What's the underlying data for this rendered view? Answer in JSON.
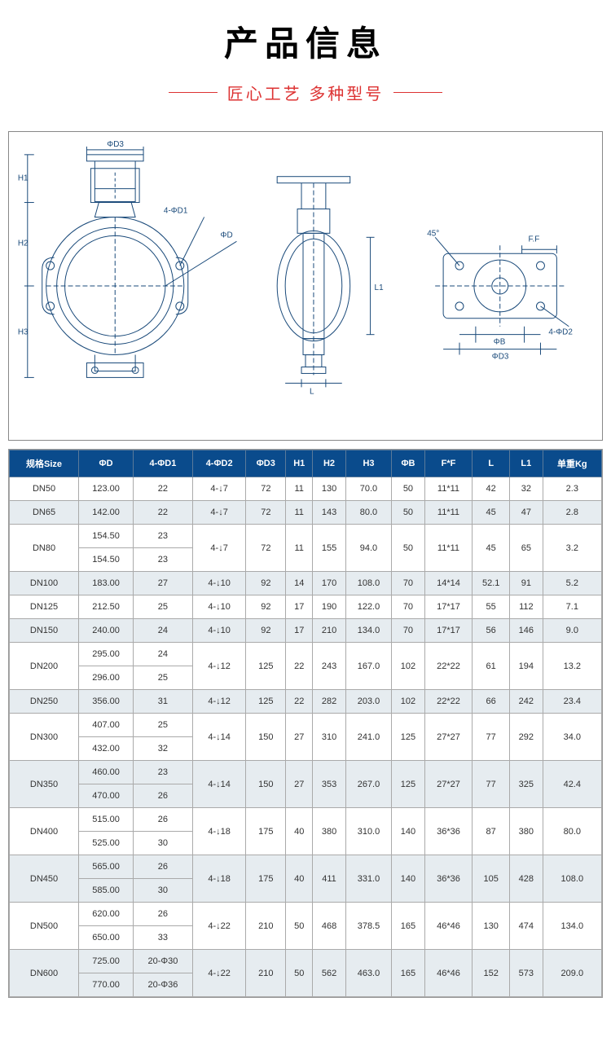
{
  "header": {
    "title": "产品信息",
    "subtitle": "匠心工艺 多种型号"
  },
  "diagram": {
    "labels": [
      "ΦD3",
      "H1",
      "H2",
      "H3",
      "4-ΦD1",
      "ΦD",
      "L",
      "L1",
      "F.F",
      "45°",
      "4-ΦD2",
      "ΦB",
      "ΦD3"
    ],
    "stroke_color": "#1a4a7a",
    "stroke_width": 1
  },
  "table": {
    "header_bg": "#0a4b8c",
    "header_color": "#ffffff",
    "alt_row_bg": "#e6ecf0",
    "border_color": "#aaaaaa",
    "columns": [
      "规格Size",
      "ΦD",
      "4-ΦD1",
      "4-ΦD2",
      "ΦD3",
      "H1",
      "H2",
      "H3",
      "ΦB",
      "F*F",
      "L",
      "L1",
      "单重Kg"
    ],
    "rows": [
      {
        "alt": false,
        "span": 1,
        "cells": [
          [
            "DN50"
          ],
          [
            "123.00"
          ],
          [
            "22"
          ],
          [
            "4-↓7"
          ],
          [
            "72"
          ],
          [
            "11"
          ],
          [
            "130"
          ],
          [
            "70.0"
          ],
          [
            "50"
          ],
          [
            "11*11"
          ],
          [
            "42"
          ],
          [
            "32"
          ],
          [
            "2.3"
          ]
        ]
      },
      {
        "alt": true,
        "span": 1,
        "cells": [
          [
            "DN65"
          ],
          [
            "142.00"
          ],
          [
            "22"
          ],
          [
            "4-↓7"
          ],
          [
            "72"
          ],
          [
            "11"
          ],
          [
            "143"
          ],
          [
            "80.0"
          ],
          [
            "50"
          ],
          [
            "11*11"
          ],
          [
            "45"
          ],
          [
            "47"
          ],
          [
            "2.8"
          ]
        ]
      },
      {
        "alt": false,
        "span": 2,
        "cells": [
          [
            "DN80"
          ],
          [
            "154.50",
            "154.50"
          ],
          [
            "23",
            "23"
          ],
          [
            "4-↓7"
          ],
          [
            "72"
          ],
          [
            "11"
          ],
          [
            "155"
          ],
          [
            "94.0"
          ],
          [
            "50"
          ],
          [
            "11*11"
          ],
          [
            "45"
          ],
          [
            "65"
          ],
          [
            "3.2"
          ]
        ]
      },
      {
        "alt": true,
        "span": 1,
        "cells": [
          [
            "DN100"
          ],
          [
            "183.00"
          ],
          [
            "27"
          ],
          [
            "4-↓10"
          ],
          [
            "92"
          ],
          [
            "14"
          ],
          [
            "170"
          ],
          [
            "108.0"
          ],
          [
            "70"
          ],
          [
            "14*14"
          ],
          [
            "52.1"
          ],
          [
            "91"
          ],
          [
            "5.2"
          ]
        ]
      },
      {
        "alt": false,
        "span": 1,
        "cells": [
          [
            "DN125"
          ],
          [
            "212.50"
          ],
          [
            "25"
          ],
          [
            "4-↓10"
          ],
          [
            "92"
          ],
          [
            "17"
          ],
          [
            "190"
          ],
          [
            "122.0"
          ],
          [
            "70"
          ],
          [
            "17*17"
          ],
          [
            "55"
          ],
          [
            "112"
          ],
          [
            "7.1"
          ]
        ]
      },
      {
        "alt": true,
        "span": 1,
        "cells": [
          [
            "DN150"
          ],
          [
            "240.00"
          ],
          [
            "24"
          ],
          [
            "4-↓10"
          ],
          [
            "92"
          ],
          [
            "17"
          ],
          [
            "210"
          ],
          [
            "134.0"
          ],
          [
            "70"
          ],
          [
            "17*17"
          ],
          [
            "56"
          ],
          [
            "146"
          ],
          [
            "9.0"
          ]
        ]
      },
      {
        "alt": false,
        "span": 2,
        "cells": [
          [
            "DN200"
          ],
          [
            "295.00",
            "296.00"
          ],
          [
            "24",
            "25"
          ],
          [
            "4-↓12"
          ],
          [
            "125"
          ],
          [
            "22"
          ],
          [
            "243"
          ],
          [
            "167.0"
          ],
          [
            "102"
          ],
          [
            "22*22"
          ],
          [
            "61"
          ],
          [
            "194"
          ],
          [
            "13.2"
          ]
        ]
      },
      {
        "alt": true,
        "span": 1,
        "cells": [
          [
            "DN250"
          ],
          [
            "356.00"
          ],
          [
            "31"
          ],
          [
            "4-↓12"
          ],
          [
            "125"
          ],
          [
            "22"
          ],
          [
            "282"
          ],
          [
            "203.0"
          ],
          [
            "102"
          ],
          [
            "22*22"
          ],
          [
            "66"
          ],
          [
            "242"
          ],
          [
            "23.4"
          ]
        ]
      },
      {
        "alt": false,
        "span": 2,
        "cells": [
          [
            "DN300"
          ],
          [
            "407.00",
            "432.00"
          ],
          [
            "25",
            "32"
          ],
          [
            "4-↓14"
          ],
          [
            "150"
          ],
          [
            "27"
          ],
          [
            "310"
          ],
          [
            "241.0"
          ],
          [
            "125"
          ],
          [
            "27*27"
          ],
          [
            "77"
          ],
          [
            "292"
          ],
          [
            "34.0"
          ]
        ]
      },
      {
        "alt": true,
        "span": 2,
        "cells": [
          [
            "DN350"
          ],
          [
            "460.00",
            "470.00"
          ],
          [
            "23",
            "26"
          ],
          [
            "4-↓14"
          ],
          [
            "150"
          ],
          [
            "27"
          ],
          [
            "353"
          ],
          [
            "267.0"
          ],
          [
            "125"
          ],
          [
            "27*27"
          ],
          [
            "77"
          ],
          [
            "325"
          ],
          [
            "42.4"
          ]
        ]
      },
      {
        "alt": false,
        "span": 2,
        "cells": [
          [
            "DN400"
          ],
          [
            "515.00",
            "525.00"
          ],
          [
            "26",
            "30"
          ],
          [
            "4-↓18"
          ],
          [
            "175"
          ],
          [
            "40"
          ],
          [
            "380"
          ],
          [
            "310.0"
          ],
          [
            "140"
          ],
          [
            "36*36"
          ],
          [
            "87"
          ],
          [
            "380"
          ],
          [
            "80.0"
          ]
        ]
      },
      {
        "alt": true,
        "span": 2,
        "cells": [
          [
            "DN450"
          ],
          [
            "565.00",
            "585.00"
          ],
          [
            "26",
            "30"
          ],
          [
            "4-↓18"
          ],
          [
            "175"
          ],
          [
            "40"
          ],
          [
            "411"
          ],
          [
            "331.0"
          ],
          [
            "140"
          ],
          [
            "36*36"
          ],
          [
            "105"
          ],
          [
            "428"
          ],
          [
            "108.0"
          ]
        ]
      },
      {
        "alt": false,
        "span": 2,
        "cells": [
          [
            "DN500"
          ],
          [
            "620.00",
            "650.00"
          ],
          [
            "26",
            "33"
          ],
          [
            "4-↓22"
          ],
          [
            "210"
          ],
          [
            "50"
          ],
          [
            "468"
          ],
          [
            "378.5"
          ],
          [
            "165"
          ],
          [
            "46*46"
          ],
          [
            "130"
          ],
          [
            "474"
          ],
          [
            "134.0"
          ]
        ]
      },
      {
        "alt": true,
        "span": 2,
        "cells": [
          [
            "DN600"
          ],
          [
            "725.00",
            "770.00"
          ],
          [
            "20-Φ30",
            "20-Φ36"
          ],
          [
            "4-↓22"
          ],
          [
            "210"
          ],
          [
            "50"
          ],
          [
            "562"
          ],
          [
            "463.0"
          ],
          [
            "165"
          ],
          [
            "46*46"
          ],
          [
            "152"
          ],
          [
            "573"
          ],
          [
            "209.0"
          ]
        ]
      }
    ]
  }
}
